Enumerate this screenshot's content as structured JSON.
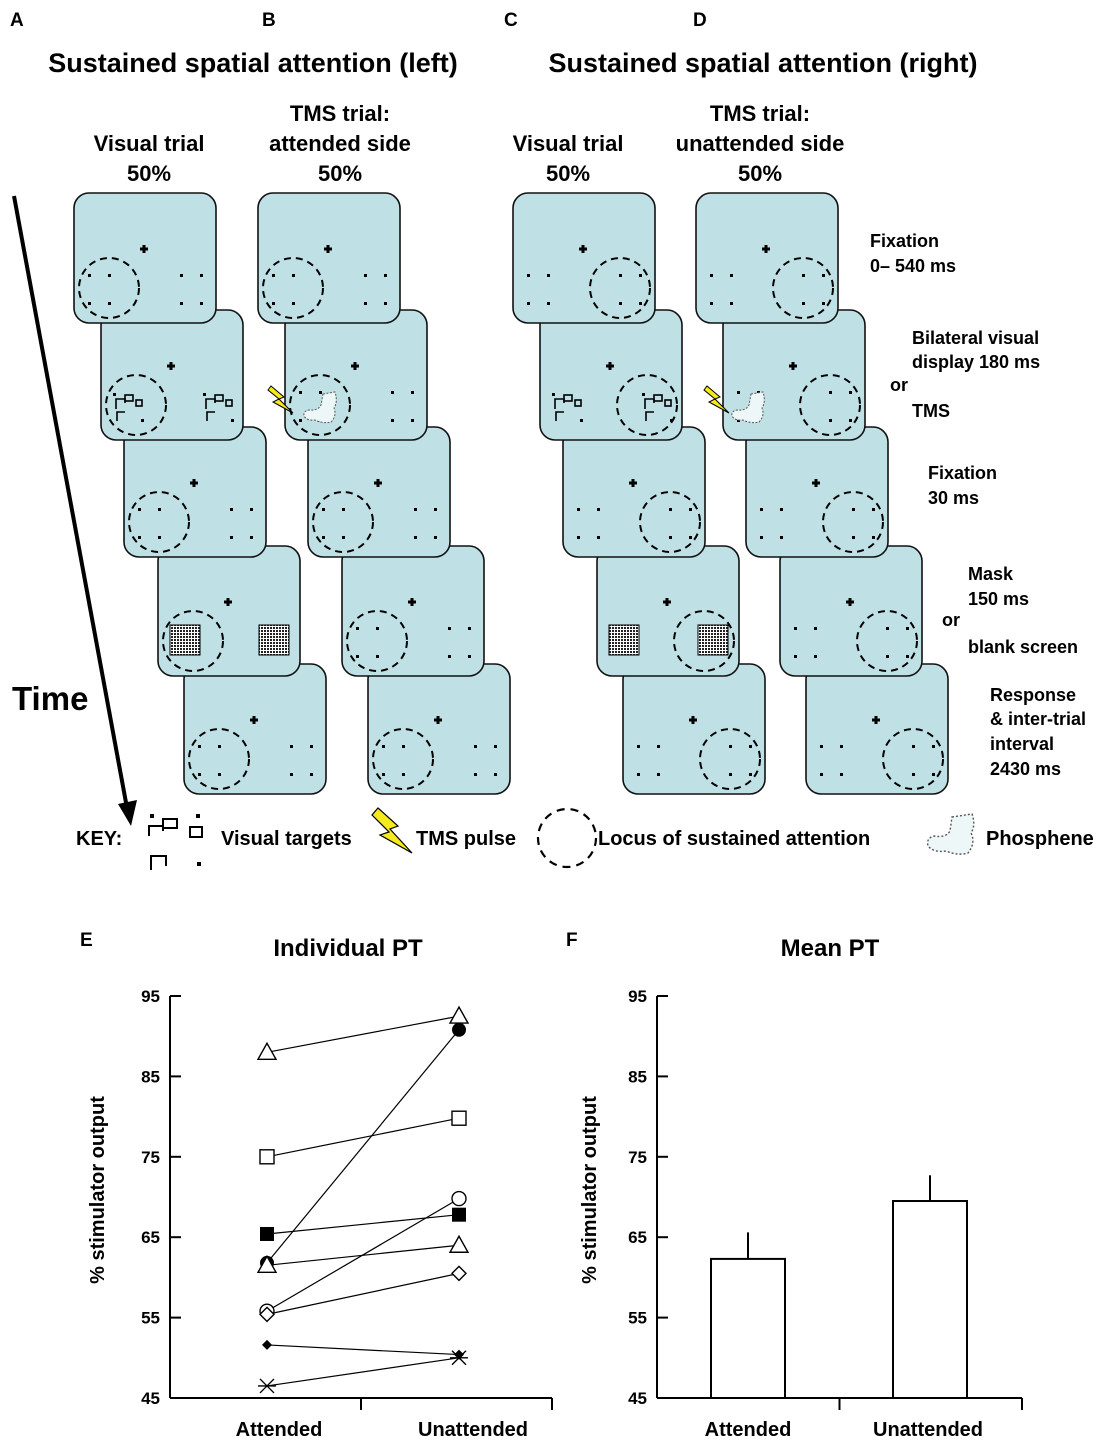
{
  "panels": {
    "a": "A",
    "b": "B",
    "c": "C",
    "d": "D",
    "e": "E",
    "f": "F"
  },
  "section_titles": {
    "left": "Sustained spatial attention (left)",
    "right": "Sustained spatial attention (right)"
  },
  "column_heads": {
    "a": [
      "Visual trial",
      "50%"
    ],
    "b": [
      "TMS trial:",
      "attended side",
      "50%"
    ],
    "c": [
      "Visual trial",
      "50%"
    ],
    "d": [
      "TMS trial:",
      "unattended side",
      "50%"
    ]
  },
  "stages": {
    "fixation1": [
      "Fixation",
      "0– 540 ms"
    ],
    "display": [
      "Bilateral visual",
      "display 180 ms"
    ],
    "or1": "or",
    "tms": "TMS",
    "fixation2": [
      "Fixation",
      "30 ms"
    ],
    "mask": [
      "Mask",
      "150 ms"
    ],
    "or2": "or",
    "blank": "blank screen",
    "response": [
      "Response",
      "& inter-trial",
      "interval",
      "2430 ms"
    ]
  },
  "time_label": "Time",
  "key": {
    "title": "KEY:",
    "visual_targets": "Visual targets",
    "tms_pulse": "TMS pulse",
    "locus": "Locus of sustained attention",
    "phosphene": "Phosphene"
  },
  "colors": {
    "screen_fill": "#bfe0e4",
    "bolt": "#f6ea1a",
    "phosphene": "#eef7f8"
  },
  "chart_data": [
    {
      "type": "line",
      "title": "Individual PT",
      "ylabel": "% stimulator output",
      "categories": [
        "Attended",
        "Unattended"
      ],
      "ylim": [
        45,
        95
      ],
      "yticks": [
        45,
        55,
        65,
        75,
        85,
        95
      ],
      "series": [
        {
          "marker": "triangle-open",
          "values": [
            88,
            92.5
          ]
        },
        {
          "marker": "square-open",
          "values": [
            75,
            79.8
          ]
        },
        {
          "marker": "square-filled",
          "values": [
            65.4,
            67.8
          ]
        },
        {
          "marker": "circle-filled",
          "values": [
            61.8,
            90.8
          ]
        },
        {
          "marker": "triangle-open",
          "values": [
            61.5,
            64
          ]
        },
        {
          "marker": "circle-open",
          "values": [
            55.8,
            69.8
          ]
        },
        {
          "marker": "diamond-open",
          "values": [
            55.4,
            60.5
          ]
        },
        {
          "marker": "diamond-filled",
          "values": [
            51.6,
            50.4
          ]
        },
        {
          "marker": "asterisk",
          "values": [
            46.5,
            50
          ]
        }
      ]
    },
    {
      "type": "bar",
      "title": "Mean PT",
      "ylabel": "% stimulator output",
      "categories": [
        "Attended",
        "Unattended"
      ],
      "values": [
        62.3,
        69.5
      ],
      "errors": [
        3.3,
        3.2
      ],
      "ylim": [
        45,
        95
      ],
      "yticks": [
        45,
        55,
        65,
        75,
        85,
        95
      ]
    }
  ]
}
